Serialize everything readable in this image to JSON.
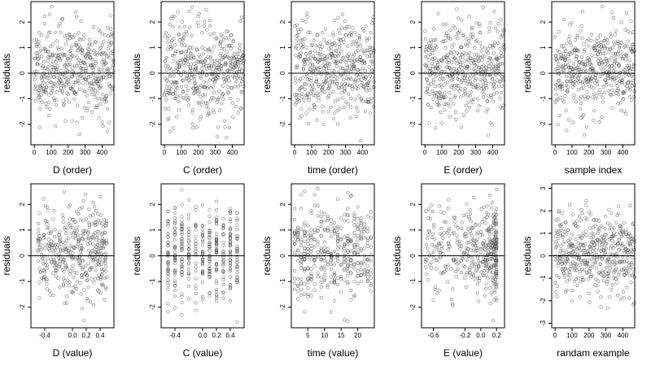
{
  "chart_data": [
    {
      "type": "scatter",
      "xlabel": "D (order)",
      "ylabel": "residuals",
      "xlim": [
        -20,
        470
      ],
      "ylim": [
        -2.8,
        2.8
      ],
      "xticks": [
        0,
        100,
        200,
        300,
        400
      ],
      "yticks": [
        -2,
        -1,
        0,
        1,
        2
      ],
      "hline": 0,
      "seed": 11,
      "x_kind": "order",
      "n": 470
    },
    {
      "type": "scatter",
      "xlabel": "C (order)",
      "ylabel": "residuals",
      "xlim": [
        -20,
        470
      ],
      "ylim": [
        -2.8,
        2.8
      ],
      "xticks": [
        0,
        100,
        200,
        300,
        400
      ],
      "yticks": [
        -2,
        -1,
        0,
        1,
        2
      ],
      "hline": 0,
      "seed": 23,
      "x_kind": "order",
      "n": 470
    },
    {
      "type": "scatter",
      "xlabel": "time (order)",
      "ylabel": "residuals",
      "xlim": [
        -20,
        470
      ],
      "ylim": [
        -2.8,
        2.8
      ],
      "xticks": [
        0,
        100,
        200,
        300,
        400
      ],
      "yticks": [
        -2,
        -1,
        0,
        1,
        2
      ],
      "hline": 0,
      "seed": 37,
      "x_kind": "order",
      "n": 470
    },
    {
      "type": "scatter",
      "xlabel": "E (order)",
      "ylabel": "residuals",
      "xlim": [
        -20,
        470
      ],
      "ylim": [
        -2.8,
        2.8
      ],
      "xticks": [
        0,
        100,
        200,
        300,
        400
      ],
      "yticks": [
        -2,
        -1,
        0,
        1,
        2
      ],
      "hline": 0,
      "seed": 41,
      "x_kind": "order",
      "n": 470
    },
    {
      "type": "scatter",
      "xlabel": "sample index",
      "ylabel": "residuals",
      "xlim": [
        -20,
        470
      ],
      "ylim": [
        -2.8,
        2.8
      ],
      "xticks": [
        0,
        100,
        200,
        300,
        400
      ],
      "yticks": [
        -2,
        -1,
        0,
        1,
        2
      ],
      "hline": 0,
      "seed": 53,
      "x_kind": "order",
      "n": 470
    },
    {
      "type": "scatter",
      "xlabel": "D (value)",
      "ylabel": "residuals",
      "xlim": [
        -0.6,
        0.6
      ],
      "ylim": [
        -2.8,
        2.8
      ],
      "xticks": [
        -0.4,
        0.0,
        0.2,
        0.4
      ],
      "xtick_labels": [
        "-0.4",
        "0.0",
        "0.2",
        "0.4"
      ],
      "yticks": [
        -2,
        -1,
        0,
        1,
        2
      ],
      "hline": 0,
      "seed": 61,
      "x_kind": "continuous",
      "n": 420
    },
    {
      "type": "scatter",
      "xlabel": "C (value)",
      "ylabel": "residuals",
      "xlim": [
        -0.6,
        0.6
      ],
      "ylim": [
        -2.8,
        2.8
      ],
      "xticks": [
        -0.4,
        0.0,
        0.2,
        0.4
      ],
      "xtick_labels": [
        "-0.4",
        "0.0",
        "0.2",
        "0.4"
      ],
      "yticks": [
        -2,
        -1,
        0,
        1,
        2
      ],
      "hline": 0,
      "seed": 71,
      "x_kind": "discrete",
      "levels": [
        -0.5,
        -0.4,
        -0.3,
        -0.2,
        -0.1,
        0.0,
        0.1,
        0.2,
        0.3,
        0.4,
        0.5
      ],
      "n": 420
    },
    {
      "type": "scatter",
      "xlabel": "time (value)",
      "ylabel": "residuals",
      "xlim": [
        0,
        25
      ],
      "ylim": [
        -2.8,
        2.8
      ],
      "xticks": [
        5,
        10,
        15,
        20
      ],
      "yticks": [
        -2,
        -1,
        0,
        1,
        2
      ],
      "hline": 0,
      "seed": 83,
      "x_kind": "discrete",
      "levels": [
        1,
        2,
        3,
        4,
        5,
        6,
        7,
        8,
        9,
        10,
        11,
        12,
        13,
        14,
        15,
        16,
        17,
        18,
        19,
        20,
        21,
        22,
        23,
        24
      ],
      "n": 420
    },
    {
      "type": "scatter",
      "xlabel": "E (value)",
      "ylabel": "residuals",
      "xlim": [
        -0.75,
        0.3
      ],
      "ylim": [
        -2.8,
        2.8
      ],
      "xticks": [
        -0.6,
        -0.2,
        0.0,
        0.2
      ],
      "xtick_labels": [
        "-0.6",
        "-0.2",
        "0.0",
        "0.2"
      ],
      "yticks": [
        -2,
        -1,
        0,
        1,
        2
      ],
      "hline": 0,
      "seed": 97,
      "x_kind": "skewed",
      "n": 420
    },
    {
      "type": "scatter",
      "xlabel": "randam example",
      "ylabel": "residuals",
      "xlim": [
        -20,
        470
      ],
      "ylim": [
        -3.2,
        3.2
      ],
      "xticks": [
        0,
        100,
        200,
        300,
        400
      ],
      "yticks": [
        -3,
        -2,
        -1,
        0,
        1,
        2,
        3
      ],
      "hline": 0,
      "seed": 101,
      "x_kind": "order",
      "n": 470
    }
  ]
}
